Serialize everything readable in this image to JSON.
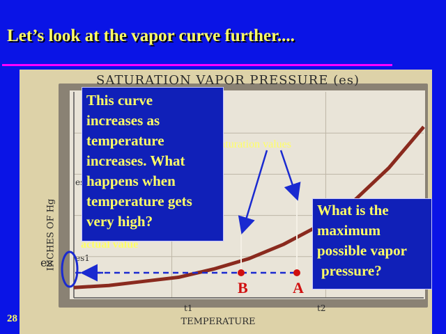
{
  "slide": {
    "title": "Let’s look at the vapor curve further....",
    "number": "28",
    "accent_color": "#ff00ff",
    "background_color": "#0a14e6",
    "text_color": "#ffff66"
  },
  "chart_data": {
    "type": "line",
    "title": "SATURATION VAPOR PRESSURE (es)",
    "xlabel": "TEMPERATURE",
    "ylabel": "INCHES OF Hg",
    "y_symbol": "es",
    "x_ticks": [
      "t1",
      "t2"
    ],
    "y_ticks": [
      "es2",
      "es1"
    ],
    "series": [
      {
        "name": "",
        "x": [
          0,
          1,
          2,
          3,
          4,
          5,
          6,
          7,
          8,
          9,
          10
        ],
        "y": [
          0.5,
          0.6,
          0.8,
          1.0,
          1.4,
          1.9,
          2.6,
          3.5,
          4.7,
          6.3,
          8.3
        ]
      }
    ],
    "xlim": [
      0,
      10
    ],
    "ylim": [
      0,
      10
    ],
    "grid": true,
    "curve_color": "#8a2a1e"
  },
  "annotations": {
    "curve_note": [
      "This curve",
      "increases as",
      "temperature",
      "increases. What",
      "happens when",
      "temperature gets",
      "very high?"
    ],
    "max_note": [
      "What is the",
      "maximum",
      "possible vapor",
      "pressure?"
    ],
    "saturation_label": "saturation values",
    "actual_label": "actual value",
    "point_b": "B",
    "point_a": "A",
    "marker_color": "#d01010",
    "arrow_color": "#1a2ad0"
  }
}
